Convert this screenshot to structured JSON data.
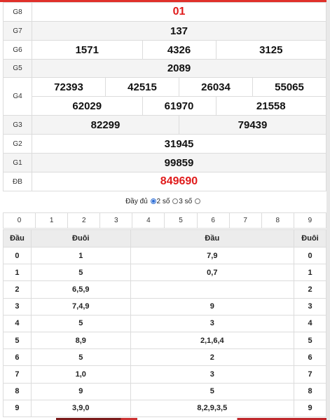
{
  "prizes": {
    "g8": {
      "label": "G8",
      "values": [
        "01"
      ]
    },
    "g7": {
      "label": "G7",
      "values": [
        "137"
      ]
    },
    "g6": {
      "label": "G6",
      "values": [
        "1571",
        "4326",
        "3125"
      ]
    },
    "g5": {
      "label": "G5",
      "values": [
        "2089"
      ]
    },
    "g4": {
      "label": "G4",
      "values": [
        "72393",
        "42515",
        "26034",
        "55065",
        "62029",
        "61970",
        "21558"
      ]
    },
    "g3": {
      "label": "G3",
      "values": [
        "82299",
        "79439"
      ]
    },
    "g2": {
      "label": "G2",
      "values": [
        "31945"
      ]
    },
    "g1": {
      "label": "G1",
      "values": [
        "99859"
      ]
    },
    "db": {
      "label": "ĐB",
      "values": [
        "849690"
      ]
    }
  },
  "filter": {
    "full": "Đầy đủ",
    "two": "2 số",
    "three": "3 số",
    "selected": "2 số"
  },
  "digits": [
    "0",
    "1",
    "2",
    "3",
    "4",
    "5",
    "6",
    "7",
    "8",
    "9"
  ],
  "loto": {
    "headers": [
      "Đầu",
      "Đuôi",
      "Đầu",
      "Đuôi"
    ],
    "rows": [
      {
        "head": "0",
        "tails": "1",
        "heads": "7,9",
        "tail": "0"
      },
      {
        "head": "1",
        "tails": "5",
        "heads": "0,7",
        "tail": "1"
      },
      {
        "head": "2",
        "tails": "6,5,9",
        "heads": "",
        "tail": "2"
      },
      {
        "head": "3",
        "tails": "7,4,9",
        "heads": "9",
        "tail": "3"
      },
      {
        "head": "4",
        "tails": "5",
        "heads": "3",
        "tail": "4"
      },
      {
        "head": "5",
        "tails": "8,9",
        "heads": "2,1,6,4",
        "tail": "5"
      },
      {
        "head": "6",
        "tails": "5",
        "heads": "2",
        "tail": "6"
      },
      {
        "head": "7",
        "tails": "1,0",
        "heads": "3",
        "tail": "7"
      },
      {
        "head": "8",
        "tails": "9",
        "heads": "5",
        "tail": "8"
      },
      {
        "head": "9",
        "tails": "3,9,0",
        "heads": "8,2,9,3,5",
        "tail": "9"
      }
    ]
  },
  "colors": {
    "accent_red": "#e01b1b",
    "radio_blue": "#2f6fd6"
  }
}
